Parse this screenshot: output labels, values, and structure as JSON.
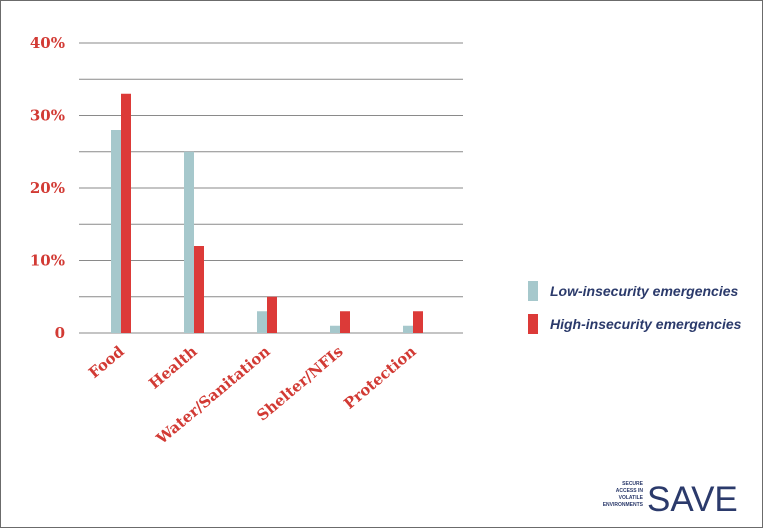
{
  "chart_data": {
    "type": "bar",
    "categories": [
      "Food",
      "Health",
      "Water/Sanitation",
      "Shelter/NFIs",
      "Protection"
    ],
    "series": [
      {
        "name": "Low-insecurity emergencies",
        "values": [
          28,
          25,
          3,
          1,
          1
        ]
      },
      {
        "name": "High-insecurity emergencies",
        "values": [
          33,
          12,
          5,
          3,
          3
        ]
      }
    ],
    "ylim": [
      0,
      40
    ],
    "yticks": [
      0,
      10,
      20,
      30,
      40
    ],
    "ytick_labels": [
      "0",
      "10%",
      "20%",
      "30%",
      "40%"
    ],
    "grid": true,
    "legend_position": "right",
    "colors": {
      "low": "#a6c8cc",
      "high": "#dc3a38",
      "accent_text": "#d23a34",
      "legend_text": "#2b3a6b",
      "grid": "#8a8a8a"
    }
  },
  "logo": {
    "lines": [
      "SECURE",
      "ACCESS IN",
      "VOLATILE",
      "ENVIRONMENTS"
    ],
    "name": "SAVE",
    "color": "#2b3a6b"
  }
}
